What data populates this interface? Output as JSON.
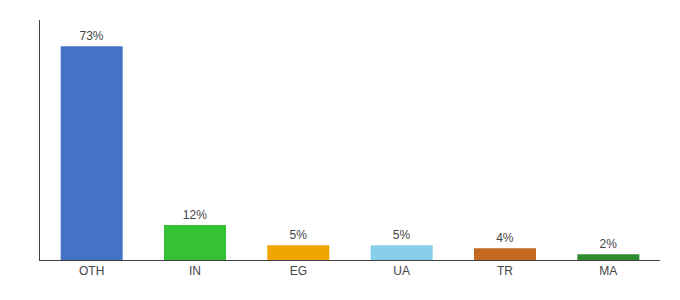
{
  "chart_data": {
    "type": "bar",
    "categories": [
      "OTH",
      "IN",
      "EG",
      "UA",
      "TR",
      "MA"
    ],
    "values": [
      73,
      12,
      5,
      5,
      4,
      2
    ],
    "value_labels": [
      "73%",
      "12%",
      "5%",
      "5%",
      "4%",
      "2%"
    ],
    "colors": [
      "#4472C4",
      "#34C234",
      "#F0A500",
      "#87CEEB",
      "#C46820",
      "#2E8B2E"
    ],
    "ylim": [
      0,
      82
    ],
    "yticks": [],
    "grid": false,
    "tick_labels": "x",
    "data_labels": true
  }
}
